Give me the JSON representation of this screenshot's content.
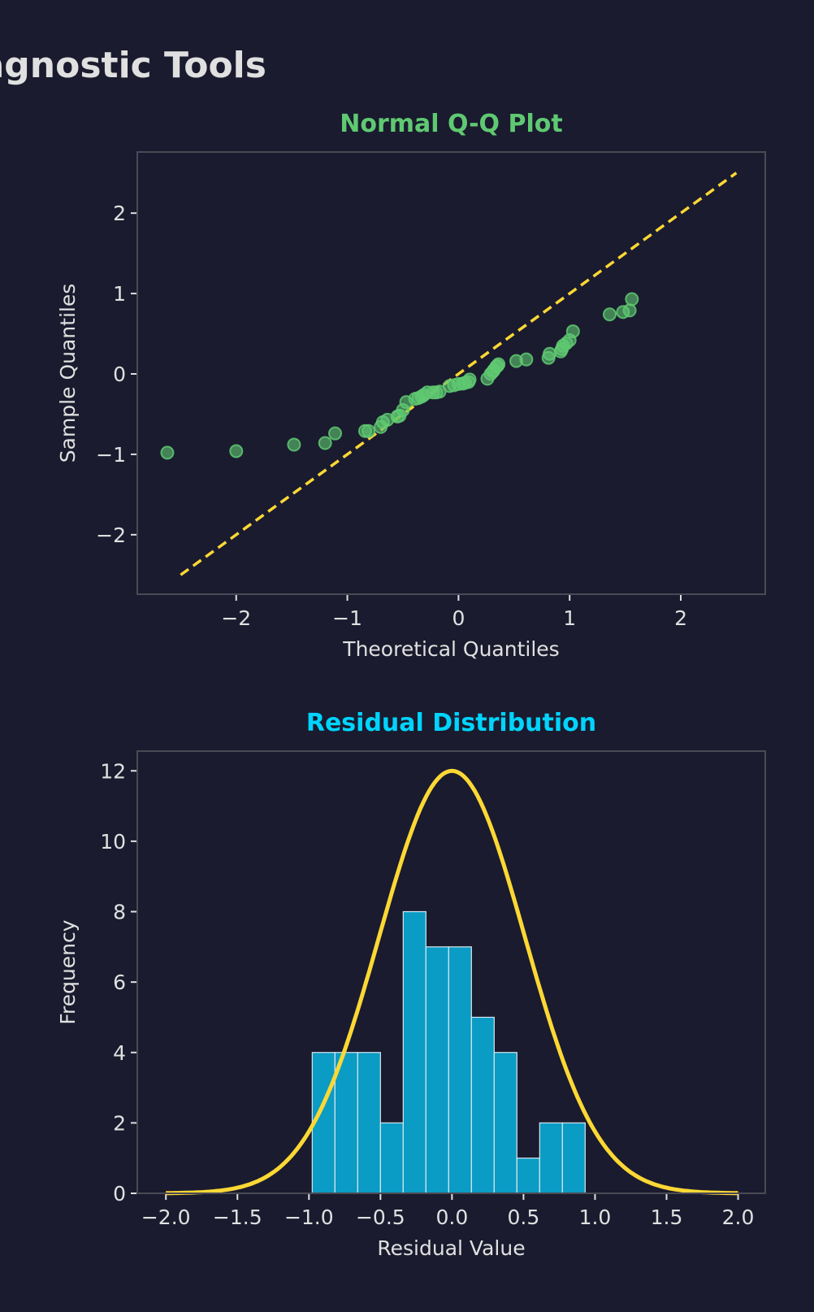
{
  "page_title": "Diagnostic Tools",
  "colors": {
    "background": "#1a1b2e",
    "text": "#e0e0e0",
    "qq_title": "#5fc972",
    "points": "#5fc972",
    "ref_line": "#fdd835",
    "hist_title": "#00d4ff",
    "bars": "#0a9cc4",
    "curve": "#fdd835",
    "frame": "#4a4a55"
  },
  "chart_data": [
    {
      "type": "scatter",
      "title": "Normal Q-Q Plot",
      "xlabel": "Theoretical Quantiles",
      "ylabel": "Sample Quantiles",
      "xlim": [
        -2.89,
        2.76
      ],
      "ylim": [
        -2.74,
        2.76
      ],
      "xticks": [
        -2,
        -1,
        0,
        1,
        2
      ],
      "yticks": [
        -2,
        -1,
        0,
        1,
        2
      ],
      "xtick_labels": [
        "−2",
        "−1",
        "0",
        "1",
        "2"
      ],
      "ytick_labels": [
        "−2",
        "−1",
        "0",
        "1",
        "2"
      ],
      "grid": false,
      "reference_line": {
        "x": [
          -2.5,
          2.5
        ],
        "y": [
          -2.5,
          2.5
        ],
        "style": "dashed"
      },
      "points": [
        [
          -2.62,
          -0.98
        ],
        [
          -2.0,
          -0.96
        ],
        [
          -1.48,
          -0.88
        ],
        [
          -1.2,
          -0.86
        ],
        [
          -1.11,
          -0.74
        ],
        [
          -0.84,
          -0.71
        ],
        [
          -0.81,
          -0.71
        ],
        [
          -0.7,
          -0.66
        ],
        [
          -0.68,
          -0.6
        ],
        [
          -0.64,
          -0.57
        ],
        [
          -0.53,
          -0.52
        ],
        [
          -0.5,
          -0.45
        ],
        [
          -0.47,
          -0.35
        ],
        [
          -0.39,
          -0.31
        ],
        [
          -0.36,
          -0.3
        ],
        [
          -0.31,
          -0.26
        ],
        [
          -0.28,
          -0.23
        ],
        [
          -0.23,
          -0.23
        ],
        [
          -0.2,
          -0.23
        ],
        [
          -0.17,
          -0.22
        ],
        [
          -0.08,
          -0.15
        ],
        [
          -0.04,
          -0.14
        ],
        [
          0.0,
          -0.125
        ],
        [
          0.04,
          -0.12
        ],
        [
          0.09,
          -0.1
        ],
        [
          0.1,
          -0.07
        ],
        [
          0.26,
          -0.06
        ],
        [
          0.29,
          0.0
        ],
        [
          0.31,
          0.03
        ],
        [
          0.32,
          0.05
        ],
        [
          0.34,
          0.09
        ],
        [
          0.35,
          0.1
        ],
        [
          0.36,
          0.12
        ],
        [
          0.52,
          0.16
        ],
        [
          0.61,
          0.18
        ],
        [
          0.81,
          0.2
        ],
        [
          0.82,
          0.25
        ],
        [
          0.92,
          0.28
        ],
        [
          0.93,
          0.31
        ],
        [
          0.94,
          0.35
        ],
        [
          0.97,
          0.38
        ],
        [
          1.0,
          0.42
        ],
        [
          1.03,
          0.53
        ],
        [
          1.36,
          0.74
        ],
        [
          1.48,
          0.77
        ],
        [
          1.54,
          0.79
        ],
        [
          1.56,
          0.93
        ],
        [
          -0.55,
          -0.53
        ],
        [
          -0.33,
          -0.28
        ],
        [
          0.06,
          -0.11
        ]
      ]
    },
    {
      "type": "bar",
      "title": "Residual Distribution",
      "xlabel": "Residual Value",
      "ylabel": "Frequency",
      "xlim": [
        -2.2,
        2.19
      ],
      "ylim": [
        0,
        12.56
      ],
      "xticks": [
        -2.0,
        -1.5,
        -1.0,
        -0.5,
        0.0,
        0.5,
        1.0,
        1.5,
        2.0
      ],
      "xtick_labels": [
        "−2.0",
        "−1.5",
        "−1.0",
        "−0.5",
        "0.0",
        "0.5",
        "1.0",
        "1.5",
        "2.0"
      ],
      "yticks": [
        0,
        2,
        4,
        6,
        8,
        10,
        12
      ],
      "ytick_labels": [
        "0",
        "2",
        "4",
        "6",
        "8",
        "10",
        "12"
      ],
      "grid": false,
      "bin_edges": [
        -0.977,
        -0.818,
        -0.659,
        -0.5,
        -0.341,
        -0.182,
        -0.023,
        0.136,
        0.295,
        0.454,
        0.613,
        0.772,
        0.931
      ],
      "values": [
        4,
        4,
        4,
        2,
        8,
        7,
        7,
        5,
        4,
        1,
        2,
        2
      ],
      "overlay_curve": {
        "type": "normal",
        "mean": 0.0,
        "sigma": 0.51,
        "peak": 12.0,
        "x_range": [
          -2.0,
          2.0
        ]
      }
    }
  ]
}
